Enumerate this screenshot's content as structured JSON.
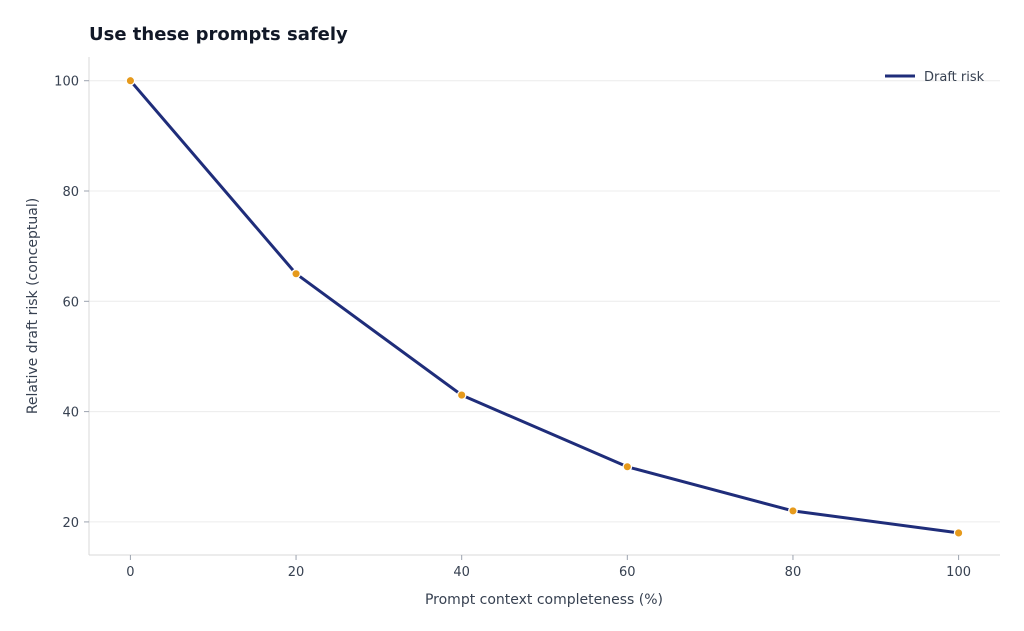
{
  "chart_data": {
    "type": "line",
    "title": "Use these prompts safely",
    "xlabel": "Prompt context completeness (%)",
    "ylabel": "Relative draft risk (conceptual)",
    "x": [
      0,
      20,
      40,
      60,
      80,
      100
    ],
    "series": [
      {
        "name": "Draft risk",
        "values": [
          100,
          65,
          43,
          30,
          22,
          18
        ],
        "color": "#1f2d7a",
        "marker_color": "#e69a1c"
      }
    ],
    "xlim": [
      -5,
      105
    ],
    "ylim": [
      14,
      104.3
    ],
    "xticks": [
      0,
      20,
      40,
      60,
      80,
      100
    ],
    "yticks": [
      20,
      40,
      60,
      80,
      100
    ],
    "grid": "horizontal",
    "legend": "top-right"
  }
}
